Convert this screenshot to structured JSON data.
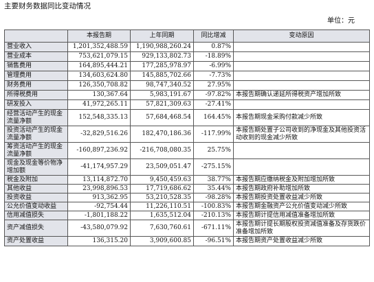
{
  "heading": "主要财务数据同比变动情况",
  "unit": "单位：元",
  "table": {
    "headers": [
      "",
      "本报告期",
      "上年同期",
      "同比增减",
      "变动原因"
    ],
    "rows": [
      {
        "item": "营业收入",
        "current": "1,201,352,488.59",
        "prior": "1,190,988,260.24",
        "change": "0.87%",
        "reason": ""
      },
      {
        "item": "营业成本",
        "current": "753,621,079.15",
        "prior": "929,133,802.73",
        "change": "-18.89%",
        "reason": ""
      },
      {
        "item": "销售费用",
        "current": "164,895,444.21",
        "prior": "177,285,978.97",
        "change": "-6.99%",
        "reason": ""
      },
      {
        "item": "管理费用",
        "current": "134,603,624.80",
        "prior": "145,885,702.66",
        "change": "-7.73%",
        "reason": ""
      },
      {
        "item": "财务费用",
        "current": "126,350,708.82",
        "prior": "98,747,340.52",
        "change": "27.95%",
        "reason": ""
      },
      {
        "item": "所得税费用",
        "current": "130,367.64",
        "prior": "5,983,191.67",
        "change": "-97.82%",
        "reason": "本报告期确认递延所得税资产增加所致"
      },
      {
        "item": "研发投入",
        "current": "41,972,265.11",
        "prior": "57,821,309.63",
        "change": "-27.41%",
        "reason": ""
      },
      {
        "item": "经营活动产生的现金流量净额",
        "current": "152,548,335.13",
        "prior": "57,684,468.54",
        "change": "164.45%",
        "reason": "本报告期现金采购付款减少所致"
      },
      {
        "item": "投资活动产生的现金流量净额",
        "current": "-32,829,516.26",
        "prior": "182,470,186.36",
        "change": "-117.99%",
        "reason": "本报告期处置子公司收到的净现金及其他投资活动收到的现金减少所致"
      },
      {
        "item": "筹资活动产生的现金流量净额",
        "current": "-160,897,236.92",
        "prior": "-216,708,080.35",
        "change": "25.75%",
        "reason": ""
      },
      {
        "item": "现金及现金等价物净增加额",
        "current": "-41,174,957.29",
        "prior": "23,509,051.47",
        "change": "-275.15%",
        "reason": ""
      },
      {
        "item": "税金及附加",
        "current": "13,114,872.70",
        "prior": "9,450,459.63",
        "change": "38.77%",
        "reason": "本报告期应缴纳税金及附加增加所致"
      },
      {
        "item": "其他收益",
        "current": "23,998,896.53",
        "prior": "17,719,686.62",
        "change": "35.44%",
        "reason": "本报告期政府补助增加所致"
      },
      {
        "item": "投资收益",
        "current": "913,362.95",
        "prior": "53,210,528.35",
        "change": "-98.28%",
        "reason": "本报告期投资处置收益减少所致"
      },
      {
        "item": "公允价值变动收益",
        "current": "-92,754.44",
        "prior": "11,226,110.51",
        "change": "-100.83%",
        "reason": "本报告期金融资产公允价值变动减少所致"
      },
      {
        "item": "信用减值损失",
        "current": "-1,801,188.22",
        "prior": "1,635,512.04",
        "change": "-210.13%",
        "reason": "本报告期计提信用减值准备增加所致"
      },
      {
        "item": "资产减值损失",
        "current": "-43,580,079.92",
        "prior": "7,630,760.61",
        "change": "-671.11%",
        "reason": "本报告期计提长期股权投资减值准备及存货跌价准备增加所致"
      },
      {
        "item": "资产处置收益",
        "current": "136,315.20",
        "prior": "3,909,600.85",
        "change": "-96.51%",
        "reason": "本报告期资产处置收益减少所致"
      }
    ]
  }
}
